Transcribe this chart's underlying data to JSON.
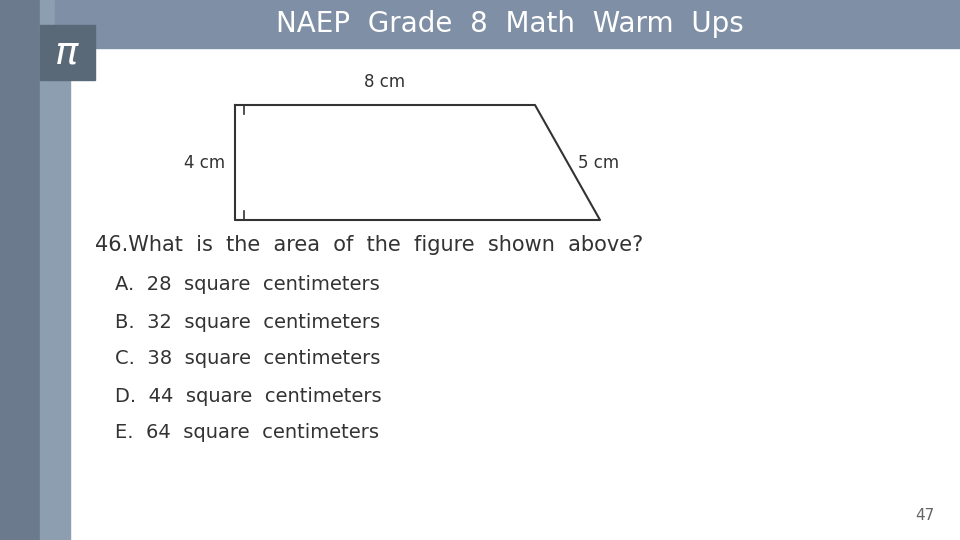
{
  "title": "NAEP  Grade  8  Math  Warm  Ups",
  "title_bg": "#7f8fa6",
  "title_color": "#ffffff",
  "left_bar_dark": "#6b7d8f",
  "left_bar_light": "#8fa0b0",
  "pi_box_color": "#5d6e7e",
  "pi_color": "#ffffff",
  "main_bg": "#ffffff",
  "question_text": "46.What  is  the  area  of  the  figure  shown  above?",
  "choices": [
    "A.  28  square  centimeters",
    "B.  32  square  centimeters",
    "C.  38  square  centimeters",
    "D.  44  square  centimeters",
    "E.  64  square  centimeters"
  ],
  "page_number": "47",
  "trap_label_top": "8 cm",
  "trap_label_left": "4 cm",
  "trap_label_right": "5 cm",
  "shape_line_color": "#333333",
  "shape_fill": "#ffffff",
  "text_color": "#333333"
}
